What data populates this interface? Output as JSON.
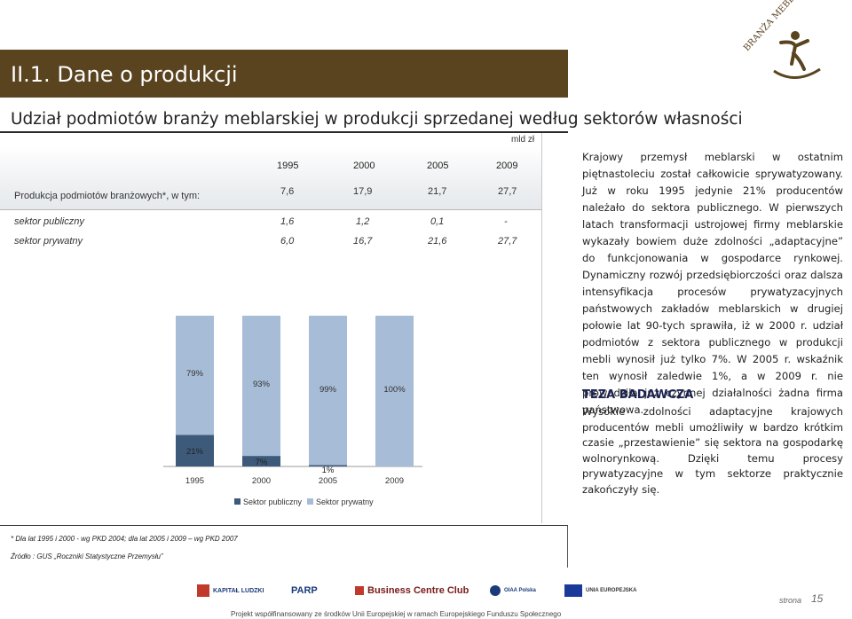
{
  "header": {
    "title": "II.1. Dane o produkcji"
  },
  "logo": {
    "text": "BRANŻA MEBLARSKA"
  },
  "subtitle": {
    "part1": "Udział podmiotów branży meblarskiej  w produkcji sprzedanej ",
    "part2": "według sektorów własności"
  },
  "table": {
    "unit": "mld zł",
    "years": [
      "1995",
      "2000",
      "2005",
      "2009"
    ],
    "rows": [
      {
        "label": "Produkcja podmiotów branżowych*, w tym:",
        "values": [
          "7,6",
          "17,9",
          "21,7",
          "27,7"
        ]
      },
      {
        "label": "sektor publiczny",
        "values": [
          "1,6",
          "1,2",
          "0,1",
          "-"
        ]
      },
      {
        "label": "sektor prywatny",
        "values": [
          "6,0",
          "16,7",
          "21,6",
          "27,7"
        ]
      }
    ]
  },
  "chart_data": {
    "type": "bar",
    "stacked": true,
    "categories": [
      "1995",
      "2000",
      "2005",
      "2009"
    ],
    "series": [
      {
        "name": "Sektor publiczny",
        "values": [
          21,
          7,
          1,
          0
        ],
        "labels": [
          "21%",
          "7%",
          "1%",
          ""
        ],
        "color": "#3d5a7a"
      },
      {
        "name": "Sektor prywatny",
        "values": [
          79,
          93,
          99,
          100
        ],
        "labels": [
          "79%",
          "93%",
          "99%",
          "100%"
        ],
        "color": "#a7bcd6"
      }
    ],
    "ylim": [
      0,
      100
    ],
    "legend": "bottom"
  },
  "legend": {
    "public": "Sektor publiczny",
    "private": "Sektor prywatny"
  },
  "right_text": {
    "paragraph": "Krajowy przemysł meblarski w ostatnim piętnastoleciu został całkowicie sprywatyzowany. Już w roku 1995 jedynie 21% producentów należało do sektora publicznego. W pierwszych latach transformacji ustrojowej firmy meblarskie wykazały bowiem duże zdolności „adaptacyjne” do funkcjonowania w gospodarce rynkowej. Dynamiczny rozwój przedsiębiorczości oraz dalsza intensyfikacja procesów prywatyzacyjnych państwowych zakładów meblarskich w drugiej połowie lat 90-tych sprawiła, iż w 2000 r. udział podmiotów z sektora publicznego w produkcji mebli wynosił już tylko 7%. W 2005 r. wskaźnik ten wynosił zaledwie 1%, a w 2009 r. nie prowadziła już czynnej działalności żadna firma państwowa.",
    "thesis_title": "TEZA BADAWCZA",
    "thesis": "Wysokie zdolności adaptacyjne krajowych producentów mebli umożliwiły w bardzo krótkim czasie „przestawienie” się sektora na gospodarkę wolnorynkową. Dzięki temu procesy prywatyzacyjne w tym sektorze praktycznie zakończyły się."
  },
  "notes": {
    "note1": "* Dla lat 1995 i 2000 - wg PKD 2004; dla lat 2005 i 2009 – wg PKD 2007",
    "source": "Źródło : GUS „Roczniki Statystyczne Przemysłu”"
  },
  "footer": {
    "sponsor1": "KAPITAŁ LUDZKI",
    "sponsor2": "PARP",
    "sponsor3": "Business Centre Club",
    "sponsor4": "OIAA Polska",
    "sponsor5": "UNIA EUROPEJSKA",
    "page_label": "strona",
    "page_number": "15",
    "bottom_text": "Projekt współfinansowany ze środków Unii Europejskiej w ramach Europejskiego Funduszu Społecznego"
  }
}
